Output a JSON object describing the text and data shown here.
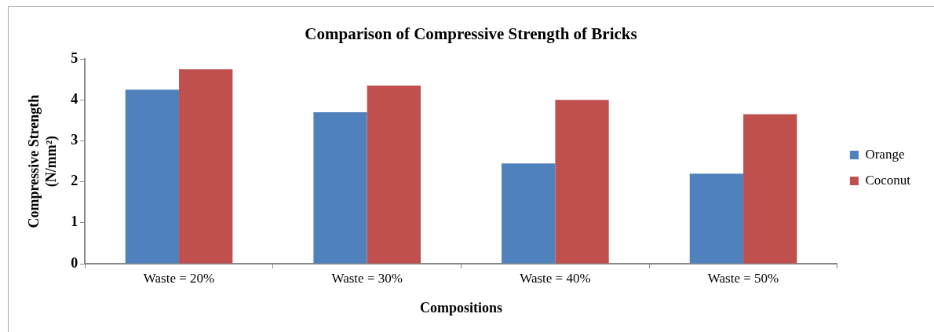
{
  "chart_data": {
    "type": "bar",
    "title": "Comparison of Compressive Strength of Bricks",
    "xlabel": "Compositions",
    "ylabel": "Compressive Strength (N/mm²)",
    "categories": [
      "Waste = 20%",
      "Waste = 30%",
      "Waste = 40%",
      "Waste = 50%"
    ],
    "series": [
      {
        "name": "Orange",
        "color": "#4f81bd",
        "values": [
          4.25,
          3.7,
          2.45,
          2.2
        ]
      },
      {
        "name": "Coconut",
        "color": "#c0504d",
        "values": [
          4.75,
          4.35,
          4.0,
          3.65
        ]
      }
    ],
    "ylim": [
      0,
      5
    ],
    "yticks": [
      0,
      1,
      2,
      3,
      4,
      5
    ],
    "grid": false,
    "legend": "right"
  }
}
